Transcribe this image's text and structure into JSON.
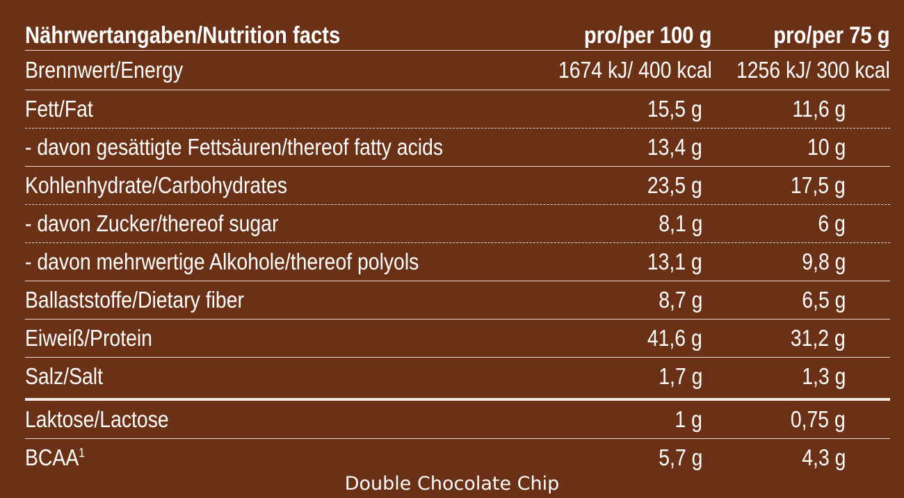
{
  "table": {
    "header": {
      "title": "Nährwertangaben/Nutrition facts",
      "col1": "pro/per 100 g",
      "col2": "pro/per 75 g"
    },
    "energy": {
      "label": "Brennwert/Energy",
      "col1": "1674 kJ/ 400 kcal",
      "col2": "1256 kJ/ 300 kcal"
    },
    "rows": [
      {
        "label": "Fett/Fat",
        "col1": "15,5 g",
        "col2": "11,6 g"
      },
      {
        "label": "- davon gesättigte Fettsäuren/thereof fatty acids",
        "col1": "13,4 g",
        "col2": "10 g"
      },
      {
        "label": "Kohlenhydrate/Carbohydrates",
        "col1": "23,5 g",
        "col2": "17,5 g"
      },
      {
        "label": "- davon Zucker/thereof sugar",
        "col1": "8,1 g",
        "col2": "6 g"
      },
      {
        "label": "- davon mehrwertige Alkohole/thereof polyols",
        "col1": "13,1 g",
        "col2": "9,8 g"
      },
      {
        "label": "Ballaststoffe/Dietary fiber",
        "col1": "8,7 g",
        "col2": "6,5 g"
      },
      {
        "label": "Eiweiß/Protein",
        "col1": "41,6 g",
        "col2": "31,2 g"
      },
      {
        "label": "Salz/Salt",
        "col1": "1,7 g",
        "col2": "1,3 g"
      }
    ],
    "extra_rows": [
      {
        "label": "Laktose/Lactose",
        "col1": "1 g",
        "col2": "0,75 g"
      },
      {
        "label": "BCAA",
        "sup": "1",
        "col1": "5,7 g",
        "col2": "4,3 g"
      }
    ]
  },
  "footer": {
    "caption": "Double Chocolate Chip"
  },
  "colors": {
    "background": "#6b3116",
    "text": "#ffffff",
    "rule": "#e9ddd6"
  }
}
